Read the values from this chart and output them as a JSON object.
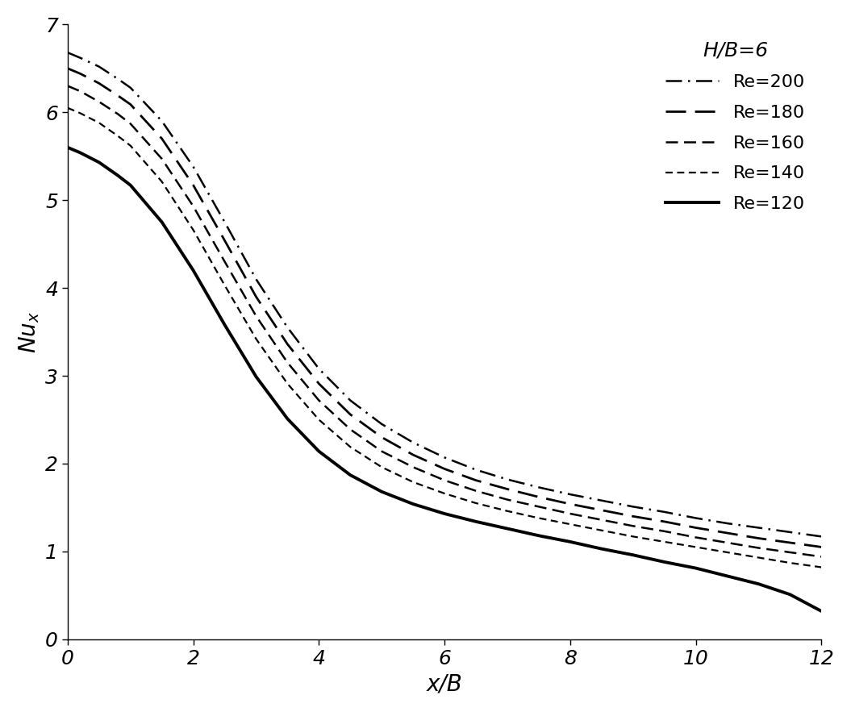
{
  "title": "H/B=6",
  "xlabel": "x/B",
  "ylabel": "Nu_x",
  "xlim": [
    0,
    12
  ],
  "ylim": [
    0,
    7
  ],
  "xticks": [
    0,
    2,
    4,
    6,
    8,
    10,
    12
  ],
  "yticks": [
    0,
    1,
    2,
    3,
    4,
    5,
    6,
    7
  ],
  "series": [
    {
      "label": "Re=200",
      "linewidth": 1.8,
      "color": "#000000",
      "x": [
        0.0,
        0.2,
        0.5,
        0.8,
        1.0,
        1.5,
        2.0,
        2.5,
        3.0,
        3.5,
        4.0,
        4.5,
        5.0,
        5.5,
        6.0,
        6.5,
        7.0,
        7.5,
        8.0,
        8.5,
        9.0,
        9.5,
        10.0,
        10.5,
        11.0,
        11.5,
        12.0
      ],
      "y": [
        6.68,
        6.62,
        6.52,
        6.38,
        6.28,
        5.9,
        5.38,
        4.75,
        4.1,
        3.55,
        3.08,
        2.72,
        2.45,
        2.24,
        2.07,
        1.93,
        1.82,
        1.73,
        1.65,
        1.58,
        1.51,
        1.45,
        1.38,
        1.32,
        1.27,
        1.22,
        1.17
      ]
    },
    {
      "label": "Re=180",
      "linewidth": 2.0,
      "color": "#000000",
      "x": [
        0.0,
        0.2,
        0.5,
        0.8,
        1.0,
        1.5,
        2.0,
        2.5,
        3.0,
        3.5,
        4.0,
        4.5,
        5.0,
        5.5,
        6.0,
        6.5,
        7.0,
        7.5,
        8.0,
        8.5,
        9.0,
        9.5,
        10.0,
        10.5,
        11.0,
        11.5,
        12.0
      ],
      "y": [
        6.5,
        6.44,
        6.33,
        6.19,
        6.09,
        5.7,
        5.17,
        4.54,
        3.9,
        3.36,
        2.91,
        2.56,
        2.3,
        2.1,
        1.94,
        1.81,
        1.71,
        1.62,
        1.54,
        1.47,
        1.4,
        1.34,
        1.27,
        1.21,
        1.15,
        1.1,
        1.05
      ]
    },
    {
      "label": "Re=160",
      "linewidth": 1.8,
      "color": "#000000",
      "x": [
        0.0,
        0.2,
        0.5,
        0.8,
        1.0,
        1.5,
        2.0,
        2.5,
        3.0,
        3.5,
        4.0,
        4.5,
        5.0,
        5.5,
        6.0,
        6.5,
        7.0,
        7.5,
        8.0,
        8.5,
        9.0,
        9.5,
        10.0,
        10.5,
        11.0,
        11.5,
        12.0
      ],
      "y": [
        6.3,
        6.24,
        6.12,
        5.98,
        5.87,
        5.47,
        4.93,
        4.3,
        3.68,
        3.15,
        2.72,
        2.39,
        2.14,
        1.96,
        1.81,
        1.69,
        1.59,
        1.51,
        1.43,
        1.36,
        1.29,
        1.23,
        1.16,
        1.1,
        1.04,
        0.99,
        0.94
      ]
    },
    {
      "label": "Re=140",
      "linewidth": 1.6,
      "color": "#000000",
      "x": [
        0.0,
        0.2,
        0.5,
        0.8,
        1.0,
        1.5,
        2.0,
        2.5,
        3.0,
        3.5,
        4.0,
        4.5,
        5.0,
        5.5,
        6.0,
        6.5,
        7.0,
        7.5,
        8.0,
        8.5,
        9.0,
        9.5,
        10.0,
        10.5,
        11.0,
        11.5,
        12.0
      ],
      "y": [
        6.05,
        5.99,
        5.88,
        5.73,
        5.62,
        5.21,
        4.66,
        4.03,
        3.42,
        2.91,
        2.5,
        2.19,
        1.96,
        1.79,
        1.66,
        1.55,
        1.46,
        1.38,
        1.31,
        1.24,
        1.17,
        1.11,
        1.05,
        0.99,
        0.93,
        0.87,
        0.82
      ]
    },
    {
      "label": "Re=120",
      "linewidth": 2.8,
      "color": "#000000",
      "x": [
        0.0,
        0.2,
        0.5,
        0.8,
        1.0,
        1.5,
        2.0,
        2.5,
        3.0,
        3.5,
        4.0,
        4.5,
        5.0,
        5.5,
        6.0,
        6.5,
        7.0,
        7.5,
        8.0,
        8.5,
        9.0,
        9.5,
        10.0,
        10.5,
        11.0,
        11.5,
        12.0
      ],
      "y": [
        5.6,
        5.54,
        5.43,
        5.28,
        5.17,
        4.75,
        4.2,
        3.58,
        2.99,
        2.51,
        2.14,
        1.87,
        1.68,
        1.54,
        1.43,
        1.34,
        1.26,
        1.18,
        1.11,
        1.03,
        0.96,
        0.88,
        0.81,
        0.72,
        0.63,
        0.51,
        0.32
      ]
    }
  ],
  "legend_title": "H/B=6",
  "background_color": "#ffffff",
  "label_fontsize": 20,
  "tick_fontsize": 18,
  "legend_fontsize": 16
}
